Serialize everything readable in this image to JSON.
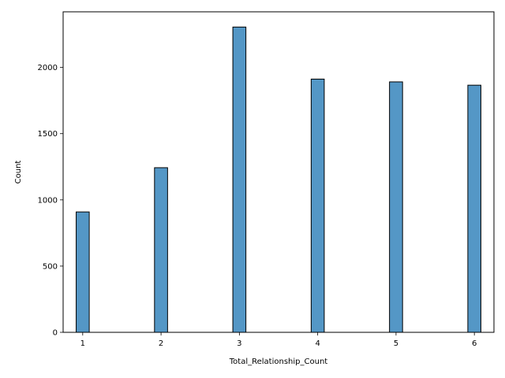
{
  "chart_data": {
    "type": "bar",
    "title": "",
    "xlabel": "Total_Relationship_Count",
    "ylabel": "Count",
    "x": [
      1,
      2,
      3,
      4,
      5,
      6
    ],
    "values": [
      909,
      1243,
      2305,
      1912,
      1891,
      1866
    ],
    "xlim": [
      0.75,
      6.25
    ],
    "ylim": [
      0,
      2420
    ],
    "xticks": [
      "1",
      "2",
      "3",
      "4",
      "5",
      "6"
    ],
    "yticks": [
      0,
      500,
      1000,
      1500,
      2000
    ],
    "bar_width": 0.1667,
    "bar_color": "#5497c6",
    "edge_color": "#000000",
    "grid": false,
    "legend": "none"
  }
}
